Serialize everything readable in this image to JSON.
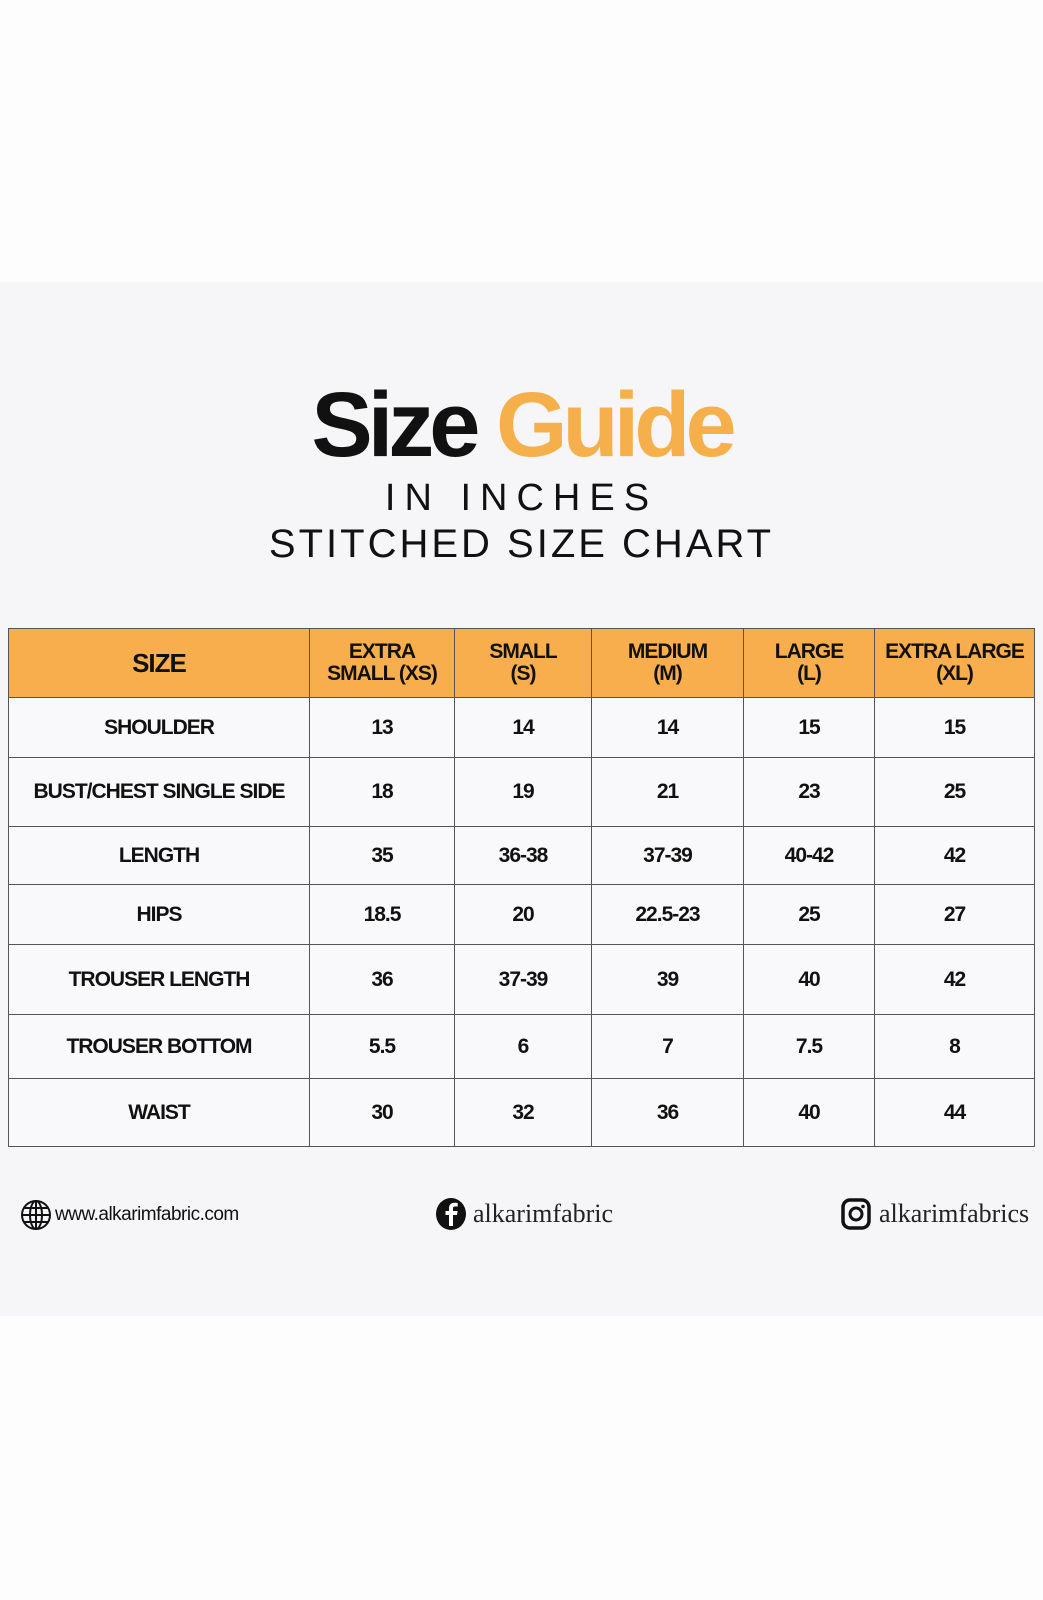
{
  "title": {
    "word1": "Size",
    "word2": "Guide"
  },
  "subtitle1": "IN INCHES",
  "subtitle2": "STITCHED SIZE CHART",
  "colors": {
    "accent": "#f8ae4c",
    "text": "#111111"
  },
  "table": {
    "headers": [
      {
        "line1": "SIZE",
        "line2": ""
      },
      {
        "line1": "EXTRA",
        "line2": "SMALL (XS)"
      },
      {
        "line1": "SMALL",
        "line2": "(S)"
      },
      {
        "line1": "MEDIUM",
        "line2": "(M)"
      },
      {
        "line1": "LARGE",
        "line2": "(L)"
      },
      {
        "line1": "EXTRA LARGE",
        "line2": "(XL)"
      }
    ],
    "rows": [
      [
        "SHOULDER",
        "13",
        "14",
        "14",
        "15",
        "15"
      ],
      [
        "BUST/CHEST SINGLE SIDE",
        "18",
        "19",
        "21",
        "23",
        "25"
      ],
      [
        "LENGTH",
        "35",
        "36-38",
        "37-39",
        "40-42",
        "42"
      ],
      [
        "HIPS",
        "18.5",
        "20",
        "22.5-23",
        "25",
        "27"
      ],
      [
        "TROUSER LENGTH",
        "36",
        "37-39",
        "39",
        "40",
        "42"
      ],
      [
        "TROUSER BOTTOM",
        "5.5",
        "6",
        "7",
        "7.5",
        "8"
      ],
      [
        "WAIST",
        "30",
        "32",
        "36",
        "40",
        "44"
      ]
    ]
  },
  "footer": {
    "website": {
      "icon": "globe-icon",
      "text": "www.alkarimfabric.com"
    },
    "facebook": {
      "icon": "facebook-icon",
      "text": "alkarimfabric"
    },
    "instagram": {
      "icon": "instagram-icon",
      "text": "alkarimfabrics"
    }
  }
}
